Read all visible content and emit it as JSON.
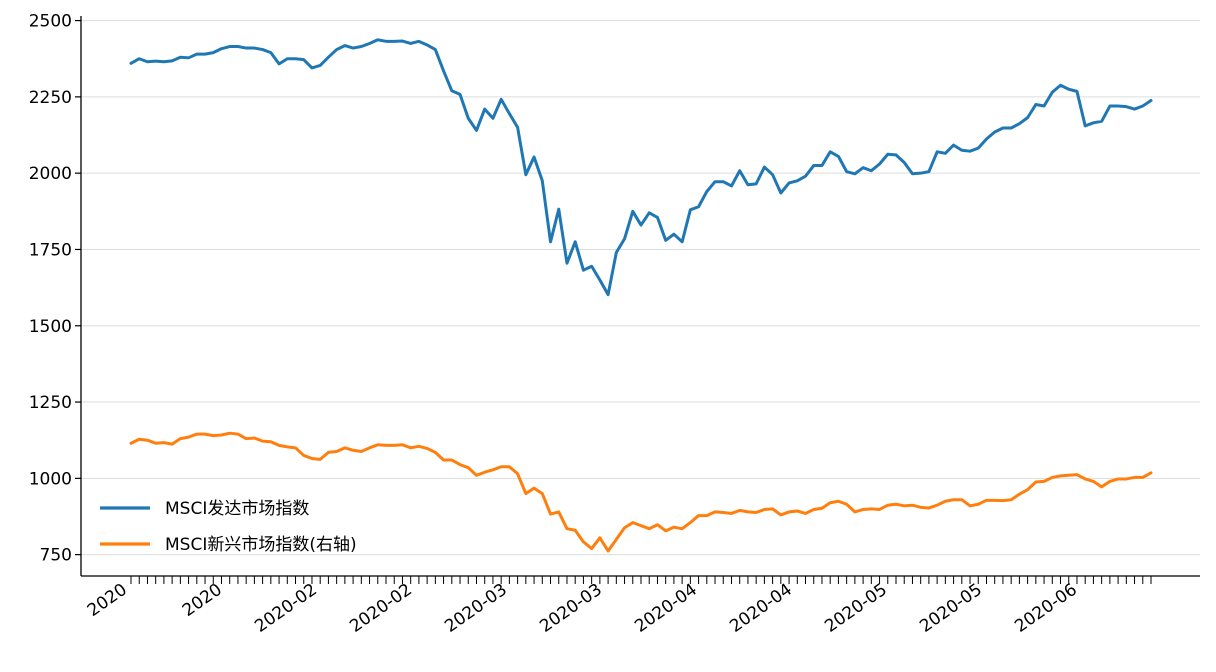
{
  "chart_data": {
    "type": "line",
    "ylim": [
      680,
      2515
    ],
    "yticks": [
      750,
      1000,
      1250,
      1500,
      1750,
      2000,
      2250,
      2500
    ],
    "grid": {
      "y": true,
      "x": false
    },
    "legend_position": "lower-left",
    "xtick_labels": [
      "2020",
      "2020",
      "2020-02",
      "2020-02",
      "2020-03",
      "2020-03",
      "2020-04",
      "2020-04",
      "2020-05",
      "2020-05",
      "2020-06"
    ],
    "series": [
      {
        "name": "MSCI发达市场指数",
        "color": "#1f77b4",
        "values": [
          2360,
          2375,
          2365,
          2367,
          2365,
          2368,
          2380,
          2378,
          2390,
          2390,
          2395,
          2408,
          2415,
          2415,
          2410,
          2410,
          2405,
          2395,
          2358,
          2375,
          2375,
          2372,
          2345,
          2353,
          2380,
          2405,
          2418,
          2410,
          2415,
          2425,
          2437,
          2432,
          2432,
          2433,
          2425,
          2432,
          2420,
          2405,
          2335,
          2270,
          2258,
          2180,
          2140,
          2210,
          2180,
          2242,
          2195,
          2150,
          1995,
          2053,
          1975,
          1775,
          1882,
          1705,
          1775,
          1682,
          1695,
          1650,
          1602,
          1740,
          1785,
          1875,
          1830,
          1870,
          1855,
          1780,
          1800,
          1775,
          1880,
          1890,
          1940,
          1972,
          1972,
          1958,
          2008,
          1962,
          1965,
          2020,
          1995,
          1935,
          1968,
          1975,
          1990,
          2025,
          2025,
          2070,
          2055,
          2005,
          1998,
          2018,
          2008,
          2030,
          2062,
          2060,
          2035,
          1998,
          2000,
          2005,
          2070,
          2065,
          2092,
          2075,
          2072,
          2082,
          2112,
          2135,
          2148,
          2148,
          2162,
          2182,
          2225,
          2220,
          2265,
          2288,
          2275,
          2268,
          2155,
          2165,
          2170,
          2220,
          2220,
          2218,
          2210,
          2220,
          2238
        ]
      },
      {
        "name": "MSCI新兴市场指数(右轴)",
        "color": "#ff7f0e",
        "values": [
          1115,
          1128,
          1125,
          1115,
          1117,
          1112,
          1130,
          1135,
          1145,
          1145,
          1140,
          1142,
          1148,
          1145,
          1130,
          1132,
          1122,
          1120,
          1108,
          1103,
          1100,
          1075,
          1065,
          1062,
          1085,
          1088,
          1100,
          1092,
          1088,
          1100,
          1110,
          1108,
          1108,
          1110,
          1100,
          1105,
          1098,
          1085,
          1060,
          1060,
          1045,
          1035,
          1010,
          1020,
          1028,
          1038,
          1038,
          1015,
          950,
          968,
          950,
          883,
          890,
          835,
          830,
          792,
          770,
          805,
          762,
          800,
          838,
          855,
          845,
          835,
          848,
          828,
          840,
          835,
          855,
          878,
          878,
          890,
          888,
          885,
          895,
          890,
          888,
          898,
          900,
          880,
          890,
          893,
          885,
          898,
          902,
          920,
          925,
          915,
          890,
          898,
          900,
          898,
          912,
          915,
          910,
          912,
          905,
          903,
          912,
          925,
          930,
          930,
          910,
          915,
          928,
          928,
          927,
          930,
          948,
          963,
          988,
          990,
          1003,
          1008,
          1010,
          1012,
          998,
          990,
          972,
          990,
          998,
          998,
          1003,
          1003,
          1018
        ]
      }
    ]
  }
}
